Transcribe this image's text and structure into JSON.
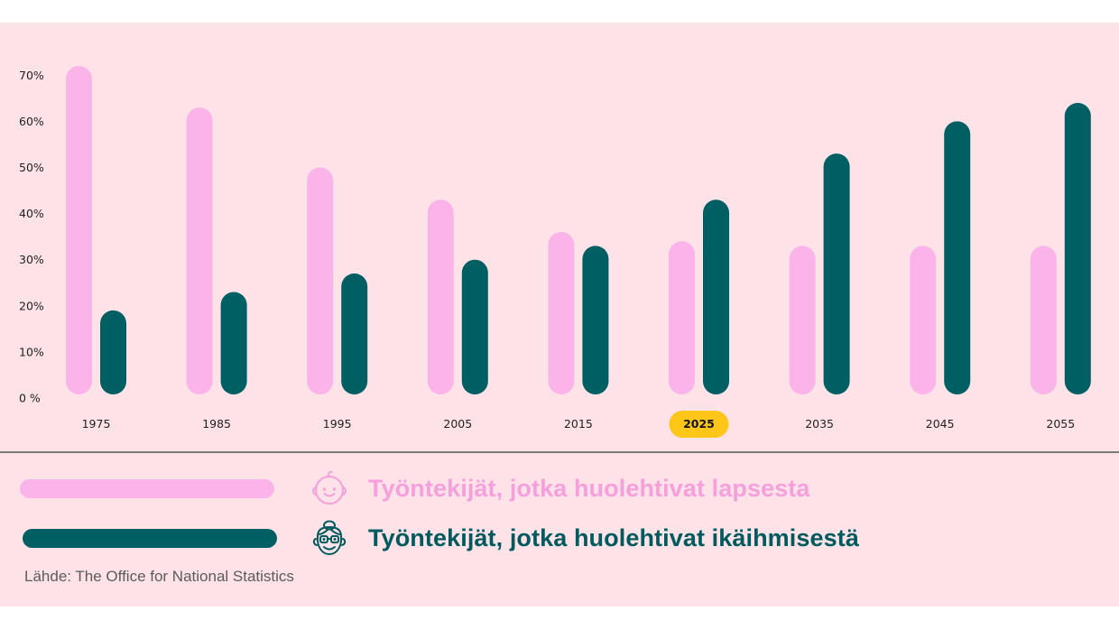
{
  "chart_data": {
    "type": "bar",
    "title": "",
    "xlabel": "",
    "ylabel": "",
    "categories": [
      "1975",
      "1985",
      "1995",
      "2005",
      "2015",
      "2025",
      "2035",
      "2045",
      "2055"
    ],
    "highlighted_category": "2025",
    "series": [
      {
        "name": "Työntekijät, jotka huolehtivat lapsesta",
        "color": "#FBB4EA",
        "values": [
          72,
          63,
          50,
          43,
          36,
          34,
          33,
          33,
          33
        ]
      },
      {
        "name": "Työntekijät, jotka huolehtivat ikäihmisestä",
        "color": "#005F63",
        "values": [
          19,
          23,
          27,
          30,
          33,
          43,
          53,
          60,
          64
        ]
      }
    ],
    "ylim": [
      0,
      70
    ],
    "yticks": [
      0,
      10,
      20,
      30,
      40,
      50,
      60,
      70
    ],
    "ytick_labels": [
      "0 %",
      "10%",
      "20%",
      "30%",
      "40%",
      "50%",
      "60%",
      "70%"
    ],
    "grid": false,
    "legend_position": "bottom-left"
  },
  "colors": {
    "background": "#FDE3E8",
    "child_series": "#FBB4EA",
    "elder_series": "#005F63",
    "highlight_badge": "#FFC61A",
    "divider": "#7D7873"
  },
  "legend": {
    "items": [
      {
        "label": "Työntekijät, jotka huolehtivat lapsesta",
        "icon": "baby-face-icon"
      },
      {
        "label": "Työntekijät, jotka huolehtivat ikäihmisestä",
        "icon": "elderly-woman-icon"
      }
    ]
  },
  "source": "Lähde: The Office for National Statistics"
}
